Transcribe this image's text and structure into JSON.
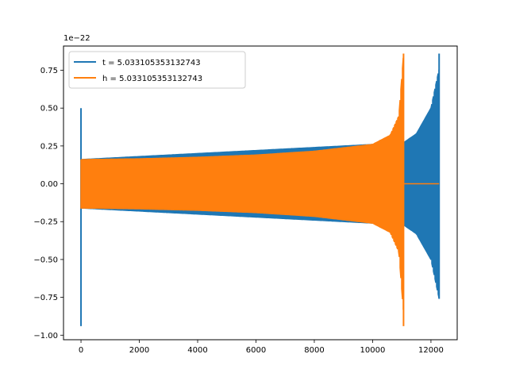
{
  "chart_data": {
    "type": "line",
    "title": "",
    "xlabel": "",
    "ylabel": "",
    "y_offset_label": "1e−22",
    "xlim": [
      -600,
      12900
    ],
    "ylim": [
      -1.03,
      0.91
    ],
    "x_ticks": [
      0,
      2000,
      4000,
      6000,
      8000,
      10000,
      12000
    ],
    "x_tick_labels": [
      "0",
      "2000",
      "4000",
      "6000",
      "8000",
      "10000",
      "12000"
    ],
    "y_ticks": [
      -1.0,
      -0.75,
      -0.5,
      -0.25,
      0.0,
      0.25,
      0.5,
      0.75
    ],
    "y_tick_labels": [
      "−1.00",
      "−0.75",
      "−0.50",
      "−0.25",
      "0.00",
      "0.25",
      "0.50",
      "0.75"
    ],
    "grid": false,
    "legend_position": "top-left",
    "series": [
      {
        "name": "t = 5.033105353132743",
        "color": "#1f77b4",
        "x_start": 0,
        "x_end": 12280,
        "spikes": [
          {
            "x": 0,
            "y": 0.5
          },
          {
            "x": 0,
            "y": -0.94
          },
          {
            "x": 12280,
            "y": 0.86
          },
          {
            "x": 12280,
            "y": -0.76
          }
        ],
        "envelope": [
          {
            "x": 0,
            "amp": 0.16
          },
          {
            "x": 11050,
            "amp": 0.27
          },
          {
            "x": 11500,
            "amp": 0.33
          },
          {
            "x": 12000,
            "amp": 0.5
          },
          {
            "x": 12280,
            "amp": 0.76
          }
        ]
      },
      {
        "name": "h = 5.033105353132743",
        "color": "#ff7f0e",
        "x_start": 0,
        "x_end": 11060,
        "tail_x_end": 12280,
        "tail_value": 0.0,
        "spikes": [
          {
            "x": 11060,
            "y": 0.86
          },
          {
            "x": 11060,
            "y": -0.94
          }
        ],
        "envelope": [
          {
            "x": 0,
            "amp": 0.16
          },
          {
            "x": 2000,
            "amp": 0.165
          },
          {
            "x": 4000,
            "amp": 0.175
          },
          {
            "x": 6000,
            "amp": 0.19
          },
          {
            "x": 8000,
            "amp": 0.215
          },
          {
            "x": 10000,
            "amp": 0.26
          },
          {
            "x": 10600,
            "amp": 0.32
          },
          {
            "x": 10900,
            "amp": 0.45
          },
          {
            "x": 11060,
            "amp": 0.86
          }
        ]
      }
    ]
  }
}
